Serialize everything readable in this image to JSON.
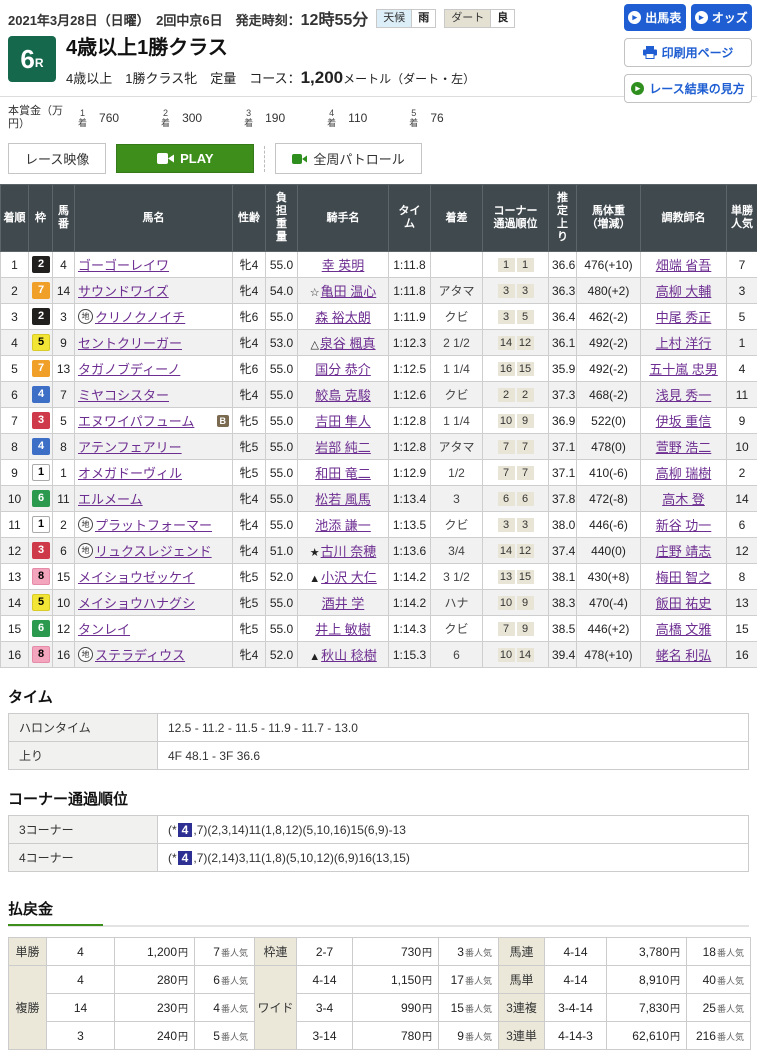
{
  "header": {
    "date": "2021年3月28日（日曜）",
    "meeting": "2回中京6日",
    "start_label": "発走時刻：",
    "start_time": "12時55分",
    "weather_label": "天候",
    "weather_value": "雨",
    "track_label": "ダート",
    "track_value": "良",
    "race_number": "6",
    "race_number_suffix": "R",
    "race_title": "4歳以上1勝クラス",
    "conditions": "4歳以上　1勝クラス牝　定量",
    "course_label": "コース：",
    "course_value": "1,200",
    "course_unit": "メートル（ダート・左）"
  },
  "top_buttons": {
    "shutsuba": "出馬表",
    "odds": "オッズ",
    "print": "印刷用ページ",
    "guide": "レース結果の見方"
  },
  "prize": {
    "label": "本賞金（万円）",
    "items": [
      {
        "rank": "1着",
        "amount": "760"
      },
      {
        "rank": "2着",
        "amount": "300"
      },
      {
        "rank": "3着",
        "amount": "190"
      },
      {
        "rank": "4着",
        "amount": "110"
      },
      {
        "rank": "5着",
        "amount": "76"
      }
    ]
  },
  "video": {
    "race_video": "レース映像",
    "play": "PLAY",
    "patrol": "全周パトロール"
  },
  "result_table": {
    "headers": [
      "着順",
      "枠",
      "馬\n番",
      "馬名",
      "性齢",
      "負\n担\n重\n量",
      "騎手名",
      "タイ\nム",
      "着差",
      "コーナー\n通過順位",
      "推\n定\n上\nり",
      "馬体重\n（増減）",
      "調教師名",
      "単勝\n人気"
    ],
    "rows": [
      {
        "pos": "1",
        "waku": "2",
        "num": "4",
        "mark": "",
        "name": "ゴーゴーレイワ",
        "b": false,
        "sexage": "牝4",
        "load": "55.0",
        "jmark": "",
        "jockey": "幸 英明",
        "time": "1:11.8",
        "margin": "",
        "c3": "1",
        "c4": "1",
        "agari": "36.6",
        "body": "476(+10)",
        "trainer": "畑端 省吾",
        "pop": "7"
      },
      {
        "pos": "2",
        "waku": "7",
        "num": "14",
        "mark": "",
        "name": "サウンドワイズ",
        "b": false,
        "sexage": "牝4",
        "load": "54.0",
        "jmark": "☆",
        "jockey": "亀田 温心",
        "time": "1:11.8",
        "margin": "アタマ",
        "c3": "3",
        "c4": "3",
        "agari": "36.3",
        "body": "480(+2)",
        "trainer": "高柳 大輔",
        "pop": "3"
      },
      {
        "pos": "3",
        "waku": "2",
        "num": "3",
        "mark": "地",
        "name": "クリノクノイチ",
        "b": false,
        "sexage": "牝6",
        "load": "55.0",
        "jmark": "",
        "jockey": "森 裕太朗",
        "time": "1:11.9",
        "margin": "クビ",
        "c3": "3",
        "c4": "5",
        "agari": "36.4",
        "body": "462(-2)",
        "trainer": "中尾 秀正",
        "pop": "5"
      },
      {
        "pos": "4",
        "waku": "5",
        "num": "9",
        "mark": "",
        "name": "セントクリーガー",
        "b": false,
        "sexage": "牝4",
        "load": "53.0",
        "jmark": "△",
        "jockey": "泉谷 楓真",
        "time": "1:12.3",
        "margin": "2 1/2",
        "c3": "14",
        "c4": "12",
        "agari": "36.1",
        "body": "492(-2)",
        "trainer": "上村 洋行",
        "pop": "1"
      },
      {
        "pos": "5",
        "waku": "7",
        "num": "13",
        "mark": "",
        "name": "タガノブディーノ",
        "b": false,
        "sexage": "牝6",
        "load": "55.0",
        "jmark": "",
        "jockey": "国分 恭介",
        "time": "1:12.5",
        "margin": "1 1/4",
        "c3": "16",
        "c4": "15",
        "agari": "35.9",
        "body": "492(-2)",
        "trainer": "五十嵐 忠男",
        "pop": "4"
      },
      {
        "pos": "6",
        "waku": "4",
        "num": "7",
        "mark": "",
        "name": "ミヤコシスター",
        "b": false,
        "sexage": "牝4",
        "load": "55.0",
        "jmark": "",
        "jockey": "鮫島 克駿",
        "time": "1:12.6",
        "margin": "クビ",
        "c3": "2",
        "c4": "2",
        "agari": "37.3",
        "body": "468(-2)",
        "trainer": "浅見 秀一",
        "pop": "11"
      },
      {
        "pos": "7",
        "waku": "3",
        "num": "5",
        "mark": "",
        "name": "エヌワイパフューム",
        "b": true,
        "sexage": "牝5",
        "load": "55.0",
        "jmark": "",
        "jockey": "吉田 隼人",
        "time": "1:12.8",
        "margin": "1 1/4",
        "c3": "10",
        "c4": "9",
        "agari": "36.9",
        "body": "522(0)",
        "trainer": "伊坂 重信",
        "pop": "9"
      },
      {
        "pos": "8",
        "waku": "4",
        "num": "8",
        "mark": "",
        "name": "アテンフェアリー",
        "b": false,
        "sexage": "牝5",
        "load": "55.0",
        "jmark": "",
        "jockey": "岩部 純二",
        "time": "1:12.8",
        "margin": "アタマ",
        "c3": "7",
        "c4": "7",
        "agari": "37.1",
        "body": "478(0)",
        "trainer": "萱野 浩二",
        "pop": "10"
      },
      {
        "pos": "9",
        "waku": "1",
        "num": "1",
        "mark": "",
        "name": "オメガドーヴィル",
        "b": false,
        "sexage": "牝5",
        "load": "55.0",
        "jmark": "",
        "jockey": "和田 竜二",
        "time": "1:12.9",
        "margin": "1/2",
        "c3": "7",
        "c4": "7",
        "agari": "37.1",
        "body": "410(-6)",
        "trainer": "高柳 瑞樹",
        "pop": "2"
      },
      {
        "pos": "10",
        "waku": "6",
        "num": "11",
        "mark": "",
        "name": "エルメーム",
        "b": false,
        "sexage": "牝4",
        "load": "55.0",
        "jmark": "",
        "jockey": "松若 風馬",
        "time": "1:13.4",
        "margin": "3",
        "c3": "6",
        "c4": "6",
        "agari": "37.8",
        "body": "472(-8)",
        "trainer": "高木 登",
        "pop": "14"
      },
      {
        "pos": "11",
        "waku": "1",
        "num": "2",
        "mark": "地",
        "name": "プラットフォーマー",
        "b": false,
        "sexage": "牝4",
        "load": "55.0",
        "jmark": "",
        "jockey": "池添 謙一",
        "time": "1:13.5",
        "margin": "クビ",
        "c3": "3",
        "c4": "3",
        "agari": "38.0",
        "body": "446(-6)",
        "trainer": "新谷 功一",
        "pop": "6"
      },
      {
        "pos": "12",
        "waku": "3",
        "num": "6",
        "mark": "地",
        "name": "リュクスレジェンド",
        "b": false,
        "sexage": "牝4",
        "load": "51.0",
        "jmark": "★",
        "jockey": "古川 奈穂",
        "time": "1:13.6",
        "margin": "3/4",
        "c3": "14",
        "c4": "12",
        "agari": "37.4",
        "body": "440(0)",
        "trainer": "庄野 靖志",
        "pop": "12"
      },
      {
        "pos": "13",
        "waku": "8",
        "num": "15",
        "mark": "",
        "name": "メイショウゼッケイ",
        "b": false,
        "sexage": "牝5",
        "load": "52.0",
        "jmark": "▲",
        "jockey": "小沢 大仁",
        "time": "1:14.2",
        "margin": "3 1/2",
        "c3": "13",
        "c4": "15",
        "agari": "38.1",
        "body": "430(+8)",
        "trainer": "梅田 智之",
        "pop": "8"
      },
      {
        "pos": "14",
        "waku": "5",
        "num": "10",
        "mark": "",
        "name": "メイショウハナグシ",
        "b": false,
        "sexage": "牝5",
        "load": "55.0",
        "jmark": "",
        "jockey": "酒井 学",
        "time": "1:14.2",
        "margin": "ハナ",
        "c3": "10",
        "c4": "9",
        "agari": "38.3",
        "body": "470(-4)",
        "trainer": "飯田 祐史",
        "pop": "13"
      },
      {
        "pos": "15",
        "waku": "6",
        "num": "12",
        "mark": "",
        "name": "タンレイ",
        "b": false,
        "sexage": "牝5",
        "load": "55.0",
        "jmark": "",
        "jockey": "井上 敏樹",
        "time": "1:14.3",
        "margin": "クビ",
        "c3": "7",
        "c4": "9",
        "agari": "38.5",
        "body": "446(+2)",
        "trainer": "高橋 文雅",
        "pop": "15"
      },
      {
        "pos": "16",
        "waku": "8",
        "num": "16",
        "mark": "地",
        "name": "ステラディウス",
        "b": false,
        "sexage": "牝4",
        "load": "52.0",
        "jmark": "▲",
        "jockey": "秋山 稔樹",
        "time": "1:15.3",
        "margin": "6",
        "c3": "10",
        "c4": "14",
        "agari": "39.4",
        "body": "478(+10)",
        "trainer": "蛯名 利弘",
        "pop": "16"
      }
    ]
  },
  "time_section": {
    "heading": "タイム",
    "rows": [
      {
        "label": "ハロンタイム",
        "value": "12.5 - 11.2 - 11.5 - 11.9 - 11.7 - 13.0"
      },
      {
        "label": "上り",
        "value": "4F 48.1 - 3F 36.6"
      }
    ]
  },
  "corner_section": {
    "heading": "コーナー通過順位",
    "rows": [
      {
        "label": "3コーナー",
        "pre": "(*",
        "hl": "4",
        "post": ",7)(2,3,14)11(1,8,12)(5,10,16)15(6,9)-13"
      },
      {
        "label": "4コーナー",
        "pre": "(*",
        "hl": "4",
        "post": ",7)(2,14)3,11(1,8)(5,10,12)(6,9)16(13,15)"
      }
    ]
  },
  "payout": {
    "heading": "払戻金",
    "unit_yen": "円",
    "unit_pop": "番人気",
    "rows": [
      [
        {
          "label": "単勝",
          "span": 1,
          "combo": "4",
          "amount": "1,200",
          "pop": "7"
        },
        {
          "label": "枠連",
          "span": 1,
          "combo": "2-7",
          "amount": "730",
          "pop": "3"
        },
        {
          "label": "馬連",
          "span": 1,
          "combo": "4-14",
          "amount": "3,780",
          "pop": "18"
        }
      ],
      [
        {
          "label": "複勝",
          "span": 3,
          "combo": "4",
          "amount": "280",
          "pop": "6"
        },
        {
          "label": "ワイド",
          "span": 3,
          "combo": "4-14",
          "amount": "1,150",
          "pop": "17"
        },
        {
          "label": "馬単",
          "span": 1,
          "combo": "4-14",
          "amount": "8,910",
          "pop": "40"
        }
      ],
      [
        {
          "combo": "14",
          "amount": "230",
          "pop": "4",
          "dash": true
        },
        {
          "combo": "3-4",
          "amount": "990",
          "pop": "15",
          "dash": true
        },
        {
          "label": "3連複",
          "span": 1,
          "combo": "3-4-14",
          "amount": "7,830",
          "pop": "25"
        }
      ],
      [
        {
          "combo": "3",
          "amount": "240",
          "pop": "5",
          "dash": true
        },
        {
          "combo": "3-14",
          "amount": "780",
          "pop": "9",
          "dash": true
        },
        {
          "label": "3連単",
          "span": 1,
          "combo": "4-14-3",
          "amount": "62,610",
          "pop": "216"
        }
      ]
    ]
  },
  "colors": {
    "accent_blue": "#1e5ed2",
    "play_green": "#3e8e1c",
    "race_badge_green": "#15684b",
    "table_header_bg": "#40494e",
    "link_purple": "#6d2e91",
    "corner_highlight_navy": "#2d3092",
    "waku": {
      "1": {
        "bg": "#ffffff",
        "fg": "#000000",
        "bd": "#aaaaaa"
      },
      "2": {
        "bg": "#221f1f",
        "fg": "#ffffff",
        "bd": "#221f1f"
      },
      "3": {
        "bg": "#cf3a4a",
        "fg": "#ffffff",
        "bd": "#cf3a4a"
      },
      "4": {
        "bg": "#3d6fc7",
        "fg": "#ffffff",
        "bd": "#3d6fc7"
      },
      "5": {
        "bg": "#f2e535",
        "fg": "#000000",
        "bd": "#d9cc2a"
      },
      "6": {
        "bg": "#2b9a4e",
        "fg": "#ffffff",
        "bd": "#2b9a4e"
      },
      "7": {
        "bg": "#f0a028",
        "fg": "#ffffff",
        "bd": "#f0a028"
      },
      "8": {
        "bg": "#f2a5bd",
        "fg": "#000000",
        "bd": "#e58ba9"
      }
    }
  }
}
